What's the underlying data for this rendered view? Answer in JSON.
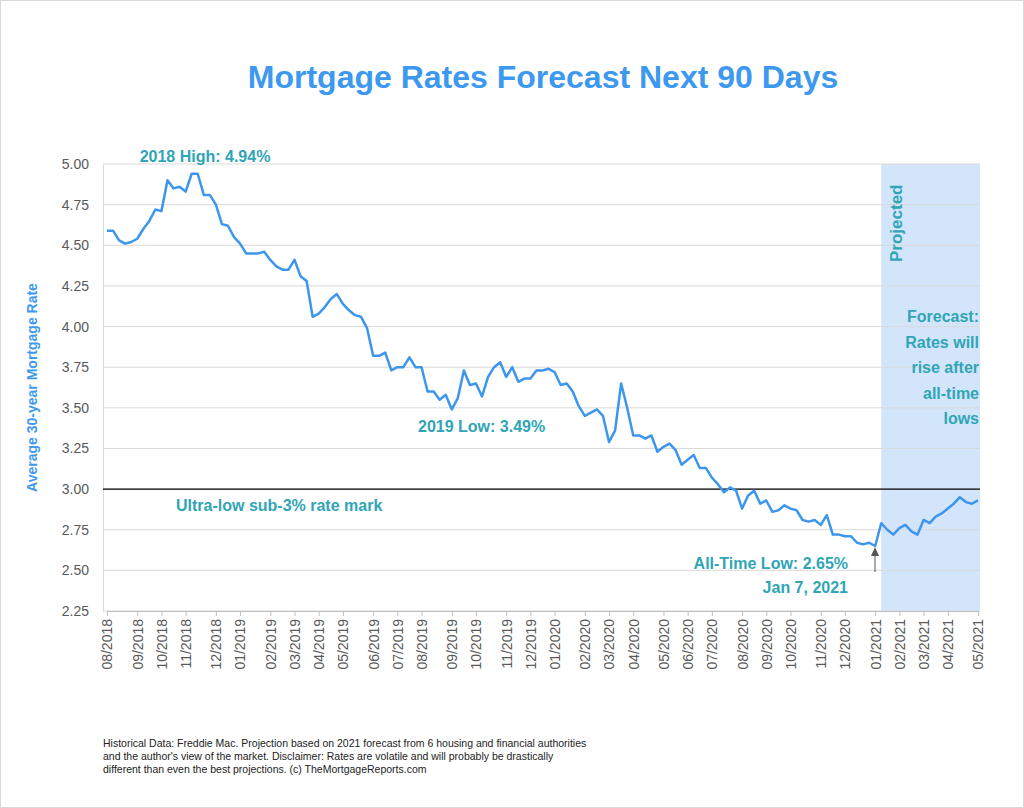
{
  "chart_data": {
    "type": "line",
    "title": "Mortgage Rates Forecast Next 90 Days",
    "y_label": "Average 30-year Mortgage Rate",
    "color": "#3d96ee",
    "grid": true,
    "ylim": [
      2.25,
      5.0
    ],
    "yticks": [
      2.25,
      {
        "value": 2.5,
        "label": "2.50"
      },
      2.75,
      {
        "value": 3.0,
        "label": "3.00"
      },
      3.25,
      {
        "value": 3.5,
        "label": "3.50"
      },
      3.75,
      {
        "value": 4.0,
        "label": "4.00"
      },
      4.25,
      {
        "value": 4.5,
        "label": "4.50"
      },
      4.75,
      {
        "value": 5.0,
        "label": "5.00"
      }
    ],
    "categories": [
      "08/2018",
      null,
      null,
      null,
      null,
      "09/2018",
      null,
      null,
      null,
      "10/2018",
      null,
      null,
      null,
      "11/2018",
      null,
      null,
      null,
      null,
      "12/2018",
      null,
      null,
      null,
      "01/2019",
      null,
      null,
      null,
      null,
      "02/2019",
      null,
      null,
      null,
      "03/2019",
      null,
      null,
      null,
      "04/2019",
      null,
      null,
      null,
      "05/2019",
      null,
      null,
      null,
      null,
      "06/2019",
      null,
      null,
      null,
      "07/2019",
      null,
      null,
      null,
      "08/2019",
      null,
      null,
      null,
      null,
      "09/2019",
      null,
      null,
      null,
      "10/2019",
      null,
      null,
      null,
      null,
      "11/2019",
      null,
      null,
      null,
      "12/2019",
      null,
      null,
      null,
      "01/2020",
      null,
      null,
      null,
      null,
      "02/2020",
      null,
      null,
      null,
      "03/2020",
      null,
      null,
      null,
      "04/2020",
      null,
      null,
      null,
      null,
      "05/2020",
      null,
      null,
      null,
      "06/2020",
      null,
      null,
      null,
      "07/2020",
      null,
      null,
      null,
      null,
      "08/2020",
      null,
      null,
      null,
      "09/2020",
      null,
      null,
      null,
      "10/2020",
      null,
      null,
      null,
      null,
      "11/2020",
      null,
      null,
      null,
      "12/2020",
      null,
      null,
      null,
      null,
      "01/2021",
      null,
      null,
      null,
      "02/2021",
      null,
      null,
      null,
      "03/2021",
      null,
      null,
      null,
      "04/2021",
      null,
      null,
      null,
      null,
      "05/2021"
    ],
    "values": [
      4.59,
      4.59,
      4.53,
      4.51,
      4.52,
      4.54,
      4.6,
      4.65,
      4.72,
      4.71,
      4.9,
      4.85,
      4.86,
      4.83,
      4.94,
      4.94,
      4.81,
      4.81,
      4.75,
      4.63,
      4.62,
      4.55,
      4.51,
      4.45,
      4.45,
      4.45,
      4.46,
      4.41,
      4.37,
      4.35,
      4.35,
      4.41,
      4.31,
      4.28,
      4.06,
      4.08,
      4.12,
      4.17,
      4.2,
      4.14,
      4.1,
      4.07,
      4.06,
      3.99,
      3.82,
      3.82,
      3.84,
      3.73,
      3.75,
      3.75,
      3.81,
      3.75,
      3.75,
      3.6,
      3.6,
      3.55,
      3.58,
      3.49,
      3.56,
      3.73,
      3.64,
      3.65,
      3.57,
      3.69,
      3.75,
      3.78,
      3.69,
      3.75,
      3.66,
      3.68,
      3.68,
      3.73,
      3.73,
      3.74,
      3.72,
      3.64,
      3.65,
      3.6,
      3.51,
      3.45,
      3.47,
      3.49,
      3.45,
      3.29,
      3.36,
      3.65,
      3.5,
      3.33,
      3.33,
      3.31,
      3.33,
      3.23,
      3.26,
      3.28,
      3.24,
      3.15,
      3.18,
      3.21,
      3.13,
      3.13,
      3.07,
      3.03,
      2.98,
      3.01,
      2.99,
      2.88,
      2.96,
      2.99,
      2.91,
      2.93,
      2.86,
      2.87,
      2.9,
      2.88,
      2.87,
      2.81,
      2.8,
      2.81,
      2.78,
      2.84,
      2.72,
      2.72,
      2.71,
      2.71,
      2.67,
      2.66,
      2.67,
      2.65,
      2.79,
      2.75,
      2.72,
      2.76,
      2.78,
      2.74,
      2.72,
      2.81,
      2.79,
      2.83,
      2.85,
      2.88,
      2.91,
      2.95,
      2.92,
      2.91,
      2.93
    ],
    "reference_line": {
      "value": 3.0,
      "label": "Ultra-low sub-3% rate mark"
    },
    "annotations": [
      {
        "text": "2018 High: 4.94%"
      },
      {
        "text": "2019 Low: 3.49%"
      },
      {
        "text": "All-Time Low: 2.65%"
      },
      {
        "text": "Jan 7, 2021"
      }
    ],
    "projection": {
      "label": "Projected",
      "start": 128,
      "end": 144,
      "note": [
        "Forecast:",
        "Rates will",
        "rise after",
        "all-time",
        "lows"
      ]
    },
    "footnote": [
      "Historical Data: Freddie Mac. Projection based on 2021 forecast from 6 housing and financial authorities",
      "and the author's view of the market. Disclaimer: Rates are volatile and will probably be drastically",
      "different than even the best projections. (c) TheMortgageReports.com"
    ]
  }
}
